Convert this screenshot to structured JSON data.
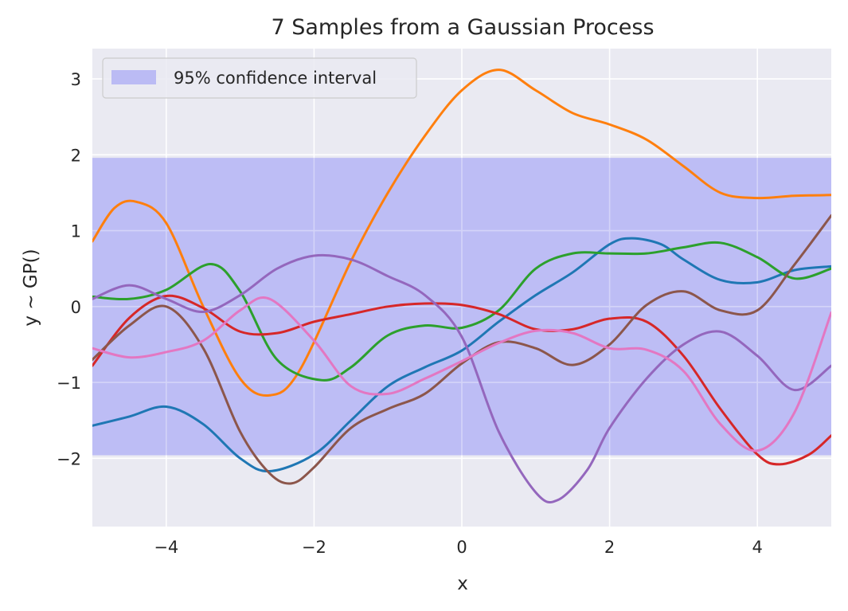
{
  "chart_data": {
    "type": "line",
    "title": "7 Samples from a Gaussian Process",
    "xlabel": "x",
    "ylabel": "y ~ GP()",
    "xlim": [
      -5,
      5
    ],
    "ylim": [
      -2.9,
      3.4
    ],
    "xticks": [
      -4,
      -2,
      0,
      2,
      4
    ],
    "yticks": [
      -2,
      -1,
      0,
      1,
      2,
      3
    ],
    "xtick_labels": [
      "−4",
      "−2",
      "0",
      "2",
      "4"
    ],
    "ytick_labels": [
      "−2",
      "−1",
      "0",
      "1",
      "2",
      "3"
    ],
    "grid": true,
    "legend": {
      "location": "upper-left",
      "entries": [
        "95% confidence interval"
      ]
    },
    "band": {
      "label": "95% confidence interval",
      "lower": -1.96,
      "upper": 1.96,
      "color": "#bbbbf4"
    },
    "colors": {
      "background": "#eaeaf2",
      "grid": "#ffffff"
    },
    "series": [
      {
        "color": "#1f77b4",
        "x": [
          -5,
          -4.5,
          -4,
          -3.5,
          -3,
          -2.6,
          -2,
          -1.5,
          -1,
          -0.5,
          0,
          0.5,
          1,
          1.5,
          2,
          2.3,
          2.7,
          3,
          3.5,
          4,
          4.5,
          5
        ],
        "y": [
          -1.57,
          -1.45,
          -1.32,
          -1.55,
          -2.0,
          -2.17,
          -1.95,
          -1.5,
          -1.05,
          -0.8,
          -0.58,
          -0.2,
          0.15,
          0.45,
          0.82,
          0.9,
          0.82,
          0.62,
          0.35,
          0.32,
          0.48,
          0.53
        ]
      },
      {
        "color": "#ff7f0e",
        "x": [
          -5,
          -4.7,
          -4.4,
          -4,
          -3.5,
          -3,
          -2.6,
          -2.2,
          -1.5,
          -1,
          -0.5,
          0,
          0.5,
          1,
          1.5,
          2,
          2.5,
          3,
          3.5,
          4,
          4.5,
          5
        ],
        "y": [
          0.86,
          1.3,
          1.38,
          1.1,
          0.0,
          -0.95,
          -1.17,
          -0.85,
          0.6,
          1.5,
          2.25,
          2.85,
          3.12,
          2.85,
          2.55,
          2.4,
          2.2,
          1.85,
          1.5,
          1.43,
          1.46,
          1.47
        ]
      },
      {
        "color": "#2ca02c",
        "x": [
          -5,
          -4.5,
          -4,
          -3.4,
          -3,
          -2.5,
          -1.9,
          -1.5,
          -1,
          -0.5,
          0,
          0.5,
          1,
          1.5,
          2,
          2.5,
          3,
          3.5,
          4,
          4.5,
          5
        ],
        "y": [
          0.13,
          0.1,
          0.22,
          0.56,
          0.2,
          -0.7,
          -0.97,
          -0.8,
          -0.38,
          -0.25,
          -0.28,
          -0.05,
          0.5,
          0.7,
          0.7,
          0.7,
          0.78,
          0.84,
          0.65,
          0.37,
          0.5
        ]
      },
      {
        "color": "#d62728",
        "x": [
          -5,
          -4.5,
          -4,
          -3.5,
          -3,
          -2.5,
          -2,
          -1.5,
          -1,
          -0.5,
          0,
          0.5,
          1,
          1.5,
          2,
          2.5,
          3,
          3.5,
          4,
          4.3,
          4.7,
          5
        ],
        "y": [
          -0.78,
          -0.15,
          0.14,
          -0.02,
          -0.33,
          -0.35,
          -0.2,
          -0.1,
          0.0,
          0.04,
          0.02,
          -0.1,
          -0.3,
          -0.3,
          -0.16,
          -0.2,
          -0.65,
          -1.35,
          -1.95,
          -2.08,
          -1.95,
          -1.7
        ]
      },
      {
        "color": "#9467bd",
        "x": [
          -5,
          -4.5,
          -4,
          -3.5,
          -3,
          -2.5,
          -2,
          -1.5,
          -1,
          -0.5,
          0,
          0.5,
          1,
          1.3,
          1.7,
          2,
          2.5,
          3,
          3.5,
          4,
          4.5,
          5
        ],
        "y": [
          0.1,
          0.28,
          0.1,
          -0.07,
          0.15,
          0.5,
          0.67,
          0.62,
          0.4,
          0.15,
          -0.4,
          -1.65,
          -2.45,
          -2.55,
          -2.15,
          -1.6,
          -0.95,
          -0.5,
          -0.33,
          -0.65,
          -1.1,
          -0.78
        ]
      },
      {
        "color": "#8c564b",
        "x": [
          -5,
          -4.5,
          -4,
          -3.5,
          -3,
          -2.6,
          -2.3,
          -2,
          -1.5,
          -1,
          -0.5,
          0,
          0.5,
          1,
          1.5,
          2,
          2.5,
          3,
          3.5,
          4,
          4.5,
          5
        ],
        "y": [
          -0.7,
          -0.25,
          0.0,
          -0.55,
          -1.65,
          -2.2,
          -2.33,
          -2.12,
          -1.6,
          -1.35,
          -1.15,
          -0.75,
          -0.47,
          -0.55,
          -0.77,
          -0.5,
          0.02,
          0.2,
          -0.05,
          -0.05,
          0.55,
          1.2
        ]
      },
      {
        "color": "#e377c2",
        "x": [
          -5,
          -4.5,
          -4,
          -3.5,
          -3,
          -2.6,
          -2,
          -1.5,
          -1,
          -0.5,
          0,
          0.5,
          1,
          1.5,
          2,
          2.5,
          3,
          3.5,
          4,
          4.5,
          5
        ],
        "y": [
          -0.55,
          -0.67,
          -0.6,
          -0.45,
          -0.05,
          0.1,
          -0.45,
          -1.05,
          -1.15,
          -0.95,
          -0.72,
          -0.48,
          -0.32,
          -0.35,
          -0.55,
          -0.57,
          -0.85,
          -1.55,
          -1.9,
          -1.4,
          -0.08
        ]
      }
    ]
  }
}
